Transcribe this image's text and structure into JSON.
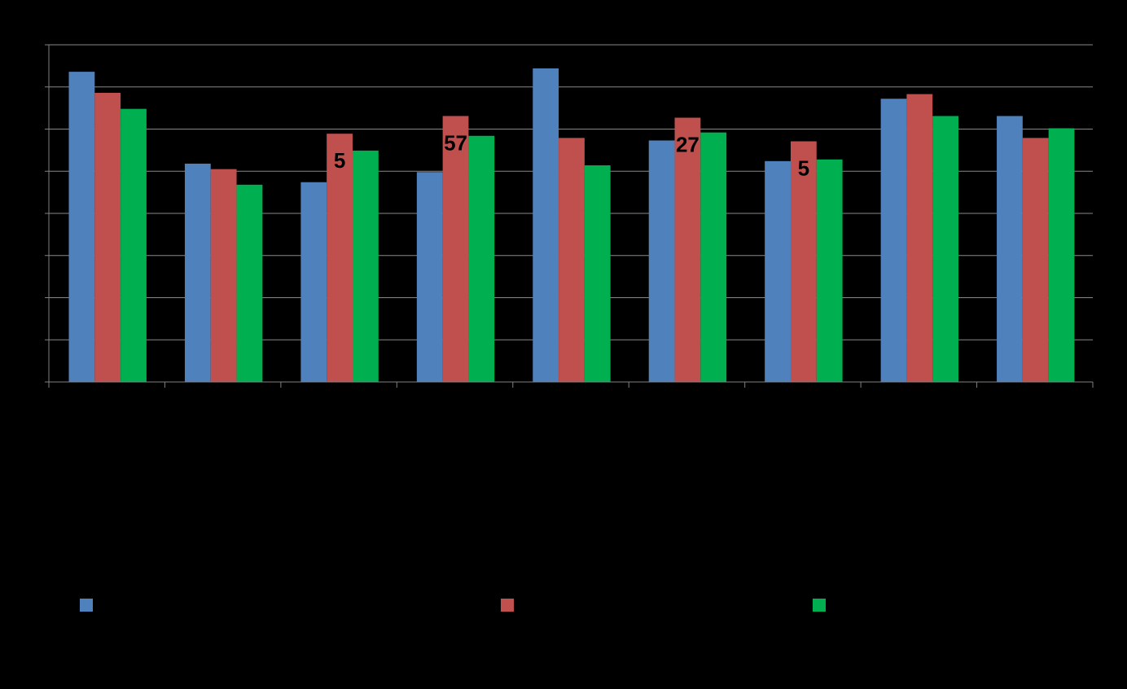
{
  "chart_data": {
    "type": "bar",
    "categories": [
      "",
      "",
      "",
      "",
      "",
      "",
      "",
      "",
      ""
    ],
    "series": [
      {
        "color": "#4f81bd",
        "values": [
          7.36,
          5.18,
          4.74,
          4.98,
          7.44,
          5.73,
          5.24,
          6.72,
          6.31
        ]
      },
      {
        "color": "#c0504d",
        "values": [
          6.86,
          5.05,
          5.89,
          6.31,
          5.79,
          6.27,
          5.71,
          6.83,
          5.79
        ]
      },
      {
        "color": "#00b050",
        "values": [
          6.48,
          4.68,
          5.49,
          5.84,
          5.14,
          5.92,
          5.28,
          6.31,
          6.02
        ]
      }
    ],
    "data_labels": [
      {
        "text": "5",
        "category": 2,
        "series": 1
      },
      {
        "text": "57",
        "category": 3,
        "series": 1
      },
      {
        "text": "27",
        "category": 5,
        "series": 1
      },
      {
        "text": "5",
        "category": 6,
        "series": 1
      }
    ],
    "ylim": [
      0,
      8
    ],
    "yticks": [
      0,
      1,
      2,
      3,
      4,
      5,
      6,
      7,
      8
    ],
    "grid": true,
    "legend_position": "bottom"
  },
  "colors": {
    "background": "#000000",
    "gridline": "#888888",
    "axis": "#808080"
  }
}
